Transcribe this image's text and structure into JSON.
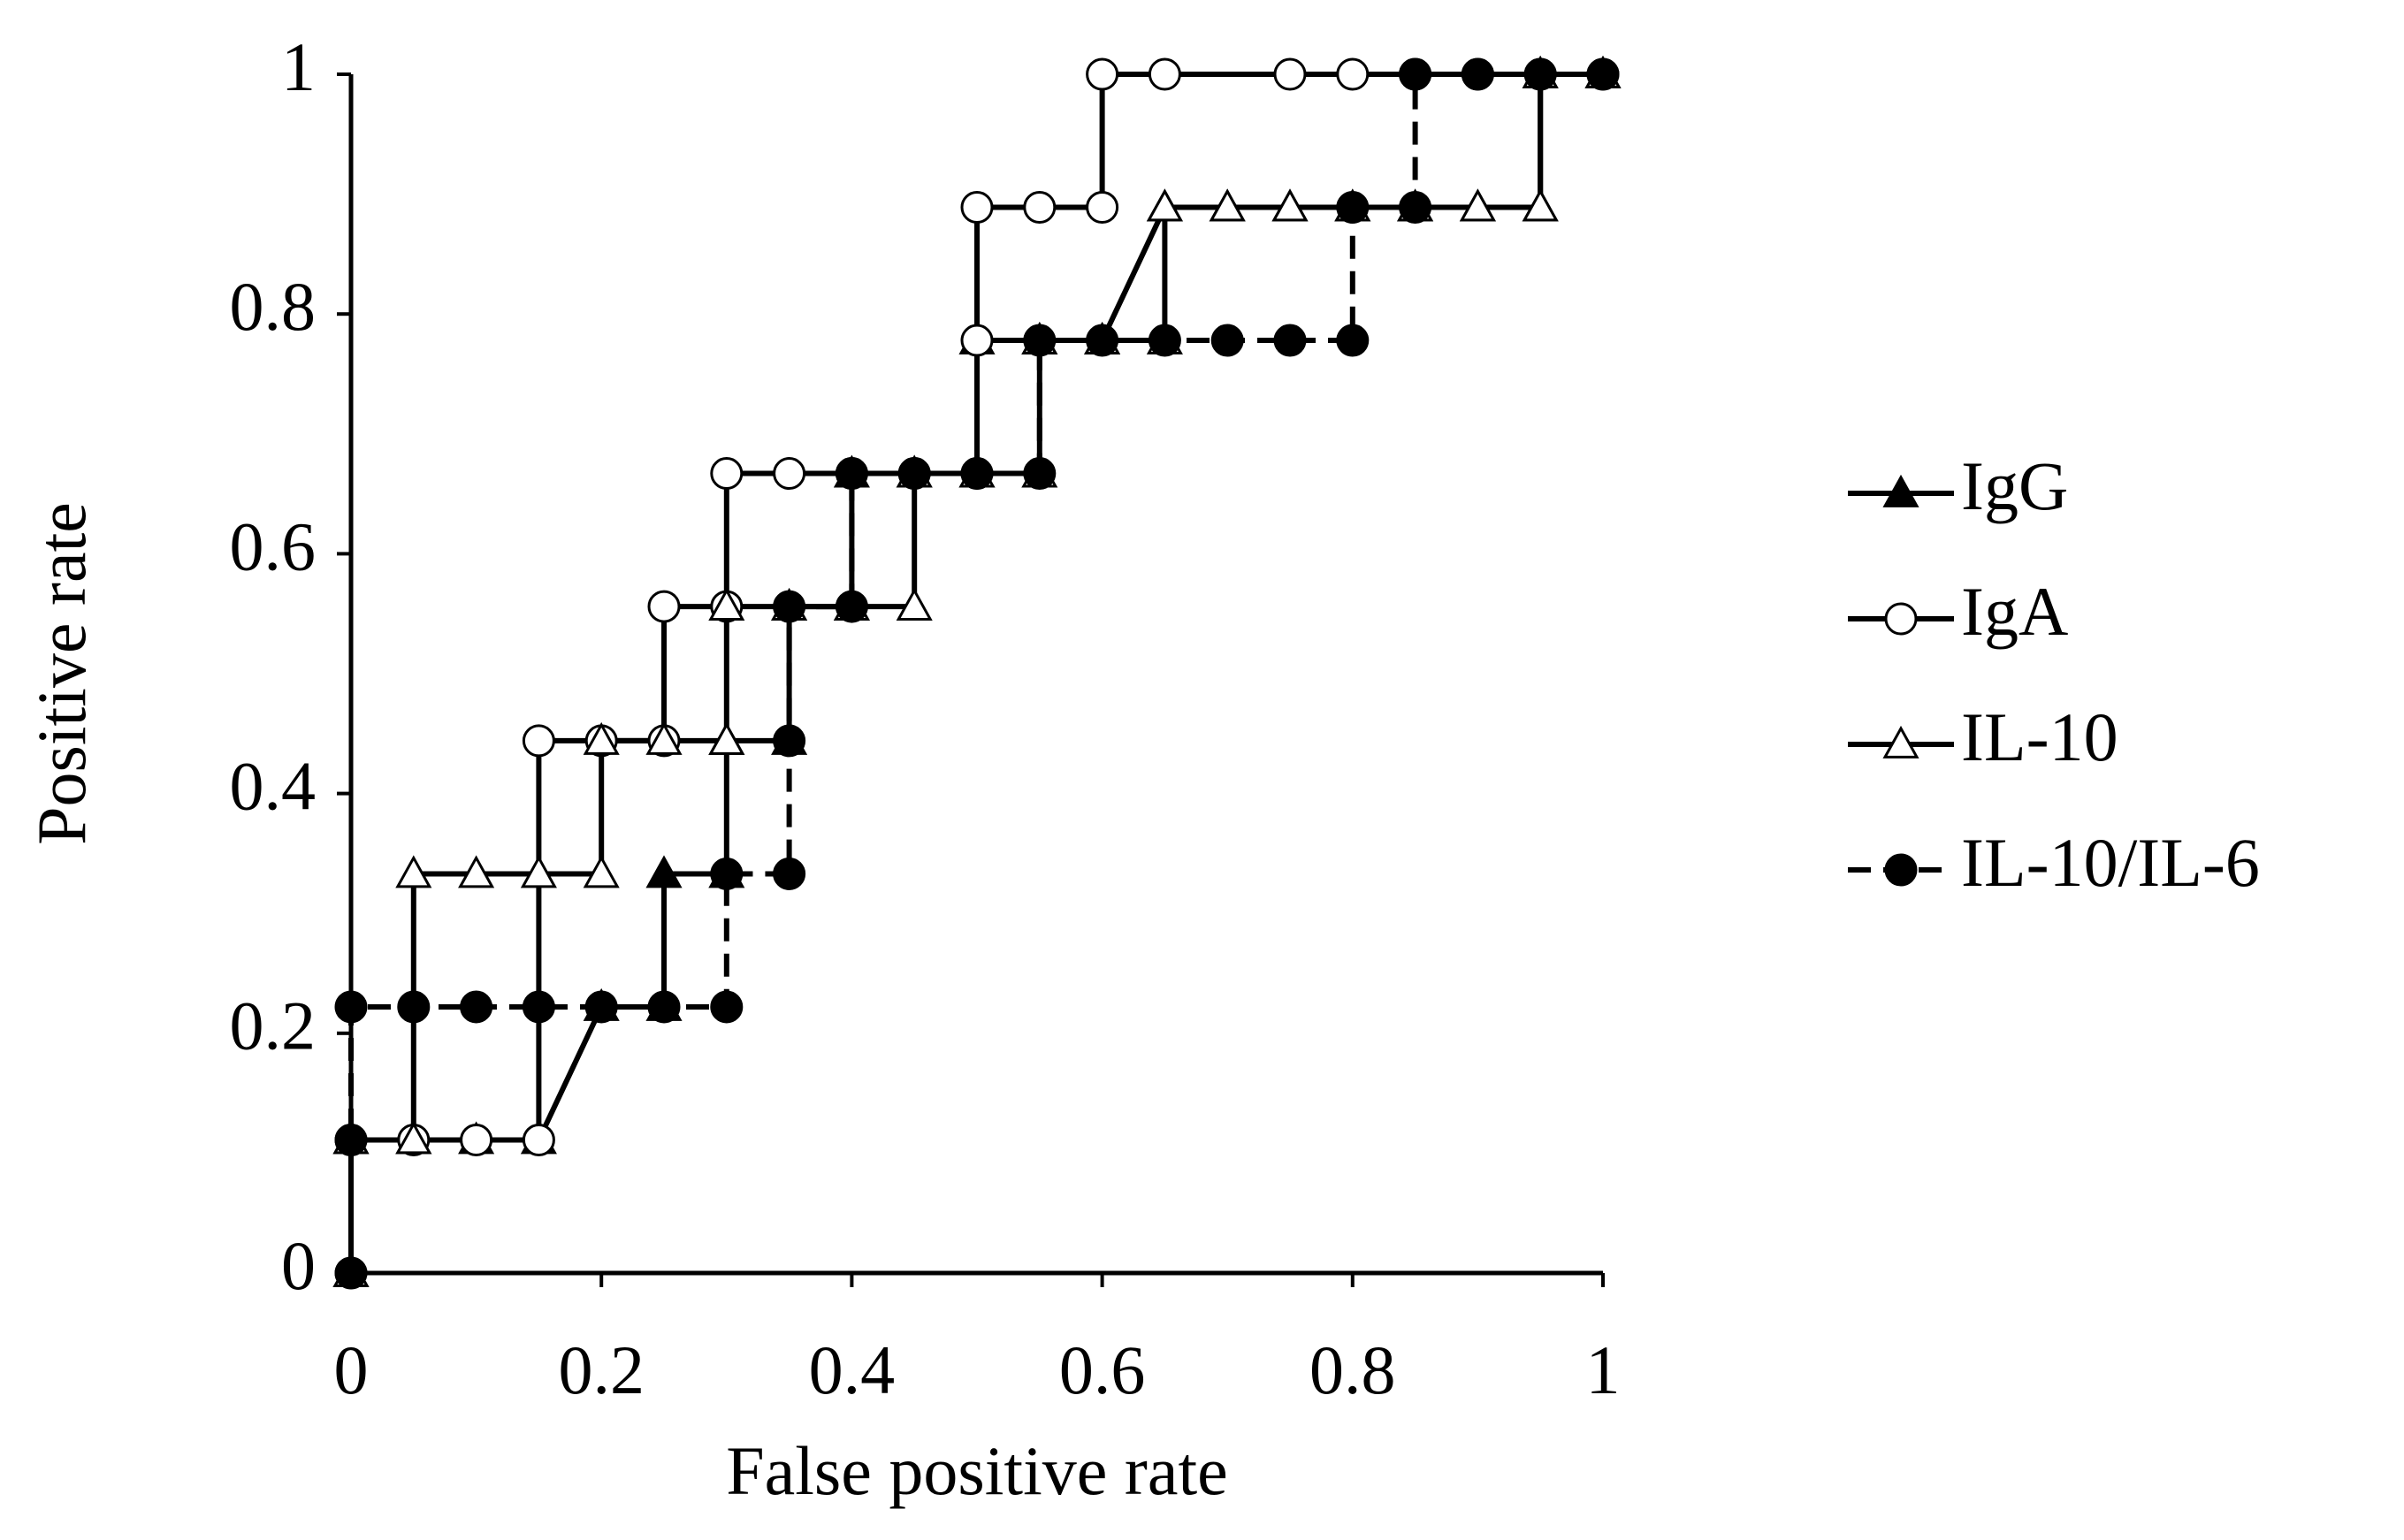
{
  "chart_data": {
    "type": "line",
    "xlabel": "False positive rate",
    "ylabel": "Positive rate",
    "xlim": [
      0,
      1
    ],
    "ylim": [
      0,
      1
    ],
    "xticks": [
      0,
      0.2,
      0.4,
      0.6,
      0.8,
      1
    ],
    "yticks": [
      0,
      0.2,
      0.4,
      0.6,
      0.8,
      1
    ],
    "grid": false,
    "legend": "right",
    "series": [
      {
        "name": "IgG",
        "color": "#000000",
        "marker": "triangle-filled",
        "line_style": "solid",
        "x": [
          0,
          0,
          0.05,
          0.1,
          0.15,
          0.2,
          0.25,
          0.25,
          0.3,
          0.3,
          0.35,
          0.35,
          0.4,
          0.4,
          0.45,
          0.5,
          0.5,
          0.55,
          0.6,
          0.65,
          0.7,
          0.75,
          0.8,
          0.85,
          0.9,
          0.95,
          0.95,
          1
        ],
        "values": [
          0,
          0.111,
          0.111,
          0.111,
          0.111,
          0.222,
          0.222,
          0.333,
          0.333,
          0.444,
          0.444,
          0.556,
          0.556,
          0.667,
          0.667,
          0.667,
          0.778,
          0.778,
          0.778,
          0.889,
          0.889,
          0.889,
          0.889,
          0.889,
          0.889,
          0.889,
          1,
          1
        ]
      },
      {
        "name": "IgA",
        "color": "#000000",
        "marker": "circle-open",
        "line_style": "solid",
        "x": [
          0,
          0,
          0.05,
          0.1,
          0.15,
          0.15,
          0.2,
          0.25,
          0.25,
          0.3,
          0.3,
          0.35,
          0.4,
          0.45,
          0.5,
          0.5,
          0.5,
          0.55,
          0.6,
          0.6,
          0.65,
          0.75,
          0.8,
          0.85,
          0.9,
          0.95,
          1
        ],
        "values": [
          0,
          0.111,
          0.111,
          0.111,
          0.111,
          0.444,
          0.444,
          0.444,
          0.556,
          0.556,
          0.667,
          0.667,
          0.667,
          0.667,
          0.667,
          0.778,
          0.889,
          0.889,
          0.889,
          1,
          1,
          1,
          1,
          1,
          1,
          1,
          1
        ]
      },
      {
        "name": "IL-10",
        "color": "#000000",
        "marker": "triangle-open",
        "line_style": "solid",
        "x": [
          0,
          0,
          0.05,
          0.05,
          0.1,
          0.15,
          0.2,
          0.2,
          0.25,
          0.3,
          0.3,
          0.35,
          0.4,
          0.45,
          0.45,
          0.5,
          0.55,
          0.55,
          0.6,
          0.65,
          0.65,
          0.7,
          0.75,
          0.8,
          0.85,
          0.9,
          0.95,
          0.95,
          1
        ],
        "values": [
          0,
          0.111,
          0.111,
          0.333,
          0.333,
          0.333,
          0.333,
          0.444,
          0.444,
          0.444,
          0.556,
          0.556,
          0.556,
          0.556,
          0.667,
          0.667,
          0.667,
          0.778,
          0.778,
          0.778,
          0.889,
          0.889,
          0.889,
          0.889,
          0.889,
          0.889,
          0.889,
          1,
          1
        ]
      },
      {
        "name": "IL-10/IL-6",
        "color": "#000000",
        "marker": "circle-filled",
        "line_style": "dashed",
        "x": [
          0,
          0,
          0,
          0.05,
          0.1,
          0.15,
          0.2,
          0.25,
          0.3,
          0.3,
          0.35,
          0.35,
          0.35,
          0.4,
          0.4,
          0.45,
          0.5,
          0.55,
          0.55,
          0.6,
          0.65,
          0.7,
          0.75,
          0.8,
          0.8,
          0.85,
          0.85,
          0.9,
          0.95,
          1
        ],
        "values": [
          0,
          0.111,
          0.222,
          0.222,
          0.222,
          0.222,
          0.222,
          0.222,
          0.222,
          0.333,
          0.333,
          0.444,
          0.556,
          0.556,
          0.667,
          0.667,
          0.667,
          0.667,
          0.778,
          0.778,
          0.778,
          0.778,
          0.778,
          0.778,
          0.889,
          0.889,
          1,
          1,
          1,
          1
        ]
      }
    ]
  }
}
